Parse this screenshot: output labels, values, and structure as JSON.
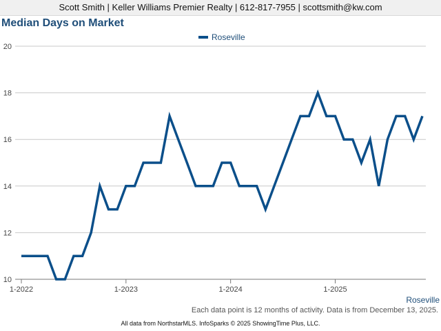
{
  "header": {
    "text": "Scott Smith | Keller Williams Premier Realty | 612-817-7955 | scottsmith@kw.com"
  },
  "footnote": "Each data point is 12 months of activity. Data is from December 13, 2025.",
  "credit": "All data from NorthstarMLS. InfoSparks © 2025 ShowingTime Plus, LLC.",
  "chart_data": {
    "type": "line",
    "title": "Median Days on Market",
    "xlabel": "",
    "ylabel": "",
    "ylim": [
      10,
      20
    ],
    "yticks": [
      10,
      12,
      14,
      16,
      18,
      20
    ],
    "xticks": [
      "1-2022",
      "1-2023",
      "1-2024",
      "1-2025"
    ],
    "grid": true,
    "legend_position": "top-center",
    "x": [
      "2022-01",
      "2022-02",
      "2022-03",
      "2022-04",
      "2022-05",
      "2022-06",
      "2022-07",
      "2022-08",
      "2022-09",
      "2022-10",
      "2022-11",
      "2022-12",
      "2023-01",
      "2023-02",
      "2023-03",
      "2023-04",
      "2023-05",
      "2023-06",
      "2023-07",
      "2023-08",
      "2023-09",
      "2023-10",
      "2023-11",
      "2023-12",
      "2024-01",
      "2024-02",
      "2024-03",
      "2024-04",
      "2024-05",
      "2024-06",
      "2024-07",
      "2024-08",
      "2024-09",
      "2024-10",
      "2024-11",
      "2024-12",
      "2025-01",
      "2025-02",
      "2025-03",
      "2025-04",
      "2025-05",
      "2025-06",
      "2025-07",
      "2025-08",
      "2025-09",
      "2025-10",
      "2025-11"
    ],
    "series": [
      {
        "name": "Roseville",
        "color": "#0b4f8a",
        "values": [
          11,
          11,
          11,
          11,
          10,
          10,
          11,
          11,
          12,
          14,
          13,
          13,
          14,
          14,
          15,
          15,
          15,
          17,
          16,
          15,
          14,
          14,
          14,
          15,
          15,
          14,
          14,
          14,
          13,
          14,
          15,
          16,
          17,
          17,
          18,
          17,
          17,
          16,
          16,
          15,
          16,
          14,
          16,
          17,
          17,
          16,
          17
        ]
      }
    ],
    "end_label": "Roseville"
  }
}
